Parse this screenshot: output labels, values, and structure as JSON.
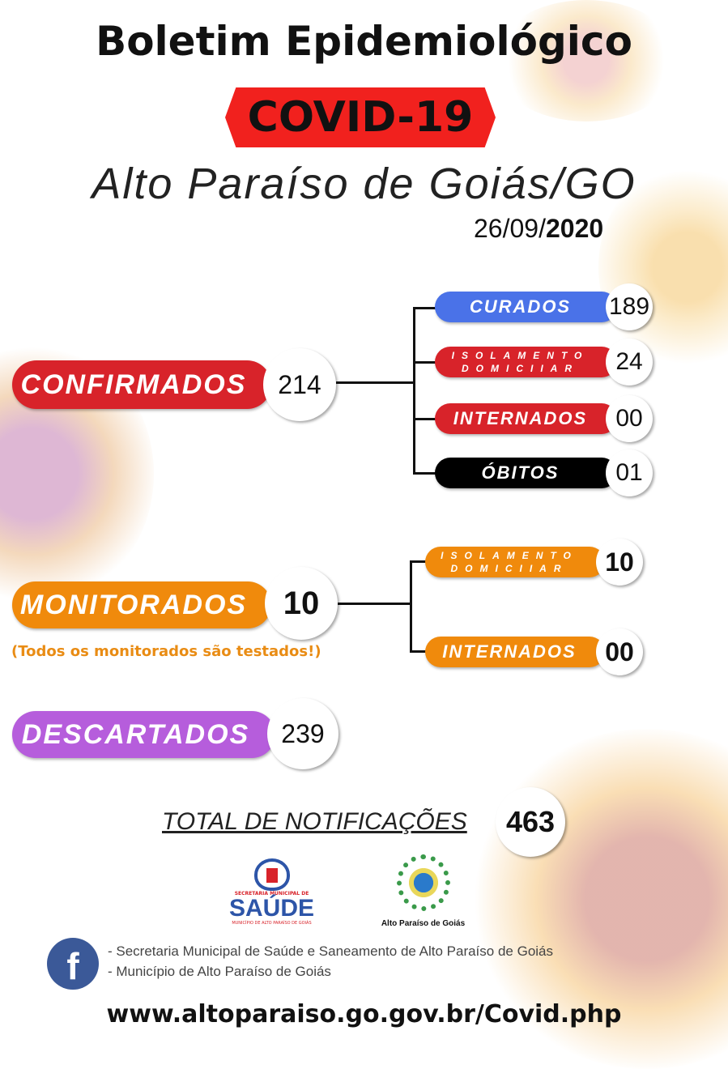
{
  "header": {
    "title": "Boletim Epidemiológico",
    "banner": "COVID-19",
    "city": "Alto Paraíso de Goiás/GO",
    "date_day_month": "26/09/",
    "date_year": "2020"
  },
  "confirmados": {
    "label": "CONFIRMADOS",
    "value": "214",
    "color": "#d8232a",
    "branches": [
      {
        "label": "CURADOS",
        "value": "189",
        "color": "#4a72e8"
      },
      {
        "label_line1": "ISOLAMENTO",
        "label_line2": "DOMICIIAR",
        "value": "24",
        "color": "#d8232a"
      },
      {
        "label": "INTERNADOS",
        "value": "00",
        "color": "#d8232a"
      },
      {
        "label": "ÓBITOS",
        "value": "01",
        "color": "#000000"
      }
    ]
  },
  "monitorados": {
    "label": "MONITORADOS",
    "value": "10",
    "color": "#f08a0c",
    "note": "(Todos os monitorados são testados!)",
    "branches": [
      {
        "label_line1": "ISOLAMENTO",
        "label_line2": "DOMICIIAR",
        "value": "10"
      },
      {
        "label": "INTERNADOS",
        "value": "00"
      }
    ]
  },
  "descartados": {
    "label": "DESCARTADOS",
    "value": "239",
    "color": "#b65ddc"
  },
  "total": {
    "label": "TOTAL DE NOTIFICAÇÕES",
    "value": "463"
  },
  "logos": {
    "saude_top": "SECRETARIA MUNICIPAL DE",
    "saude": "SAÚDE",
    "saude_bottom": "MUNICÍPIO DE ALTO PARAÍSO DE GOIÁS",
    "municipio": "Alto Paraíso de Goiás"
  },
  "footer": {
    "facebook_icon": "facebook-icon",
    "fb_line1": "- Secretaria Municipal de Saúde e Saneamento de Alto Paraíso de Goiás",
    "fb_line2": "- Município de Alto Paraíso de Goiás",
    "url": "www.altoparaiso.go.gov.br/Covid.php"
  }
}
